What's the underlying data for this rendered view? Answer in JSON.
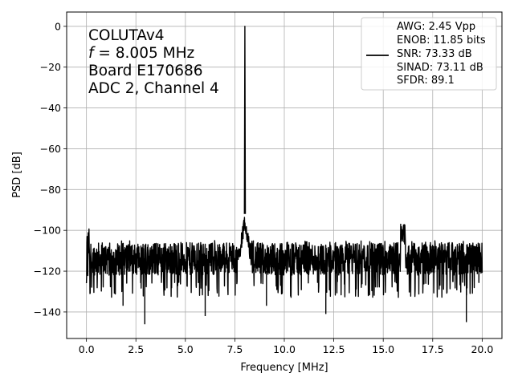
{
  "chart_data": {
    "type": "line",
    "xlabel": "Frequency [MHz]",
    "ylabel": "PSD [dB]",
    "xlim": [
      -1.0,
      21.0
    ],
    "ylim": [
      -153.0,
      7.0
    ],
    "xticks": [
      0.0,
      2.5,
      5.0,
      7.5,
      10.0,
      12.5,
      15.0,
      17.5,
      20.0
    ],
    "xtick_labels": [
      "0.0",
      "2.5",
      "5.0",
      "7.5",
      "10.0",
      "12.5",
      "15.0",
      "17.5",
      "20.0"
    ],
    "yticks": [
      0,
      -20,
      -40,
      -60,
      -80,
      -100,
      -120,
      -140
    ],
    "ytick_labels": [
      "0",
      "−20",
      "−40",
      "−60",
      "−80",
      "−100",
      "−120",
      "−140"
    ],
    "grid": true,
    "legend_position": "top-right",
    "annotation": {
      "line1": "COLUTAv4",
      "line2_var": "f",
      "line2_rest": " = 8.005 MHz",
      "line3": "Board E170686",
      "line4": "ADC 2, Channel 4"
    },
    "series": [
      {
        "legend_lines": [
          "AWG: 2.45 Vpp",
          "ENOB: 11.85 bits",
          "SNR: 73.33 dB",
          "SINAD: 73.11 dB",
          "SFDR: 89.1"
        ],
        "color": "#000000",
        "noise_floor_db": -114,
        "noise_band_db": [
          -130,
          -105
        ],
        "x_range_mhz": [
          0.0,
          20.0
        ],
        "peaks": [
          {
            "x": 0.0,
            "y": -95
          },
          {
            "x": 2.95,
            "y": -146
          },
          {
            "x": 7.9,
            "y": -91
          },
          {
            "x": 8.005,
            "y": 0
          },
          {
            "x": 8.1,
            "y": -90
          },
          {
            "x": 16.0,
            "y": -96
          },
          {
            "x": 19.2,
            "y": -145
          }
        ]
      }
    ]
  }
}
